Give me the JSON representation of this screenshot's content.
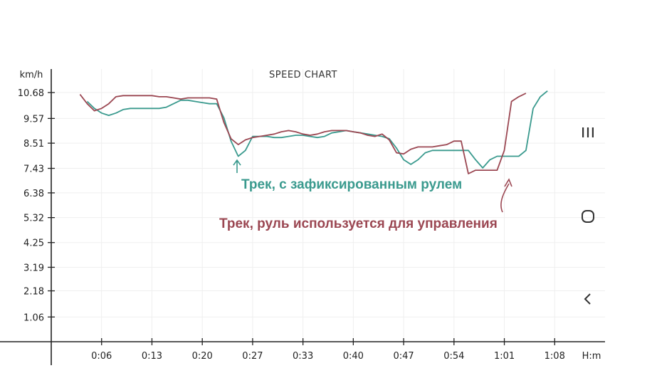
{
  "chart_data": {
    "type": "line",
    "title": "SPEED CHART",
    "ylabel": "km/h",
    "xlabel": "H:m",
    "ylim": [
      0,
      11
    ],
    "y_ticks": [
      "1.06",
      "2.18",
      "3.19",
      "4.25",
      "5.32",
      "6.38",
      "7.43",
      "8.51",
      "9.57",
      "10.68"
    ],
    "x_ticks": [
      {
        "label": "0:06",
        "t": 6
      },
      {
        "label": "0:13",
        "t": 13
      },
      {
        "label": "0:20",
        "t": 20
      },
      {
        "label": "0:27",
        "t": 27
      },
      {
        "label": "0:33",
        "t": 34
      },
      {
        "label": "0:40",
        "t": 41
      },
      {
        "label": "0:47",
        "t": 48
      },
      {
        "label": "0:54",
        "t": 55
      },
      {
        "label": "1:01",
        "t": 62
      },
      {
        "label": "1:08",
        "t": 69
      }
    ],
    "xlim": [
      -1,
      76
    ],
    "series": [
      {
        "name": "Трек, с зафиксированным рулем",
        "color": "#3a9a8e",
        "points": [
          [
            4,
            10.3
          ],
          [
            5,
            10.0
          ],
          [
            6,
            9.8
          ],
          [
            7,
            9.7
          ],
          [
            8,
            9.8
          ],
          [
            9,
            9.95
          ],
          [
            10,
            10.0
          ],
          [
            11,
            10.0
          ],
          [
            12,
            10.0
          ],
          [
            13,
            10.0
          ],
          [
            14,
            10.0
          ],
          [
            15,
            10.05
          ],
          [
            16,
            10.2
          ],
          [
            17,
            10.35
          ],
          [
            18,
            10.35
          ],
          [
            19,
            10.3
          ],
          [
            20,
            10.25
          ],
          [
            21,
            10.2
          ],
          [
            22,
            10.2
          ],
          [
            23,
            9.6
          ],
          [
            24,
            8.6
          ],
          [
            25,
            7.95
          ],
          [
            26,
            8.2
          ],
          [
            27,
            8.8
          ],
          [
            28,
            8.8
          ],
          [
            29,
            8.8
          ],
          [
            30,
            8.75
          ],
          [
            31,
            8.75
          ],
          [
            32,
            8.8
          ],
          [
            33,
            8.85
          ],
          [
            34,
            8.85
          ],
          [
            35,
            8.8
          ],
          [
            36,
            8.75
          ],
          [
            37,
            8.8
          ],
          [
            38,
            8.95
          ],
          [
            39,
            9.0
          ],
          [
            40,
            9.05
          ],
          [
            41,
            9.0
          ],
          [
            42,
            8.95
          ],
          [
            43,
            8.9
          ],
          [
            44,
            8.85
          ],
          [
            45,
            8.8
          ],
          [
            46,
            8.7
          ],
          [
            47,
            8.3
          ],
          [
            48,
            7.8
          ],
          [
            49,
            7.6
          ],
          [
            50,
            7.8
          ],
          [
            51,
            8.1
          ],
          [
            52,
            8.2
          ],
          [
            53,
            8.2
          ],
          [
            54,
            8.2
          ],
          [
            55,
            8.2
          ],
          [
            56,
            8.2
          ],
          [
            57,
            8.2
          ],
          [
            58,
            7.8
          ],
          [
            59,
            7.45
          ],
          [
            60,
            7.8
          ],
          [
            61,
            7.95
          ],
          [
            62,
            7.95
          ],
          [
            63,
            7.95
          ],
          [
            64,
            7.95
          ],
          [
            65,
            8.2
          ],
          [
            66,
            10.0
          ],
          [
            67,
            10.5
          ],
          [
            68,
            10.75
          ]
        ]
      },
      {
        "name": "Трек, руль используется для управления",
        "color": "#9b4752",
        "points": [
          [
            3,
            10.6
          ],
          [
            4,
            10.2
          ],
          [
            5,
            9.9
          ],
          [
            6,
            10.0
          ],
          [
            7,
            10.2
          ],
          [
            8,
            10.5
          ],
          [
            9,
            10.55
          ],
          [
            10,
            10.55
          ],
          [
            11,
            10.55
          ],
          [
            12,
            10.55
          ],
          [
            13,
            10.55
          ],
          [
            14,
            10.5
          ],
          [
            15,
            10.5
          ],
          [
            16,
            10.45
          ],
          [
            17,
            10.4
          ],
          [
            18,
            10.45
          ],
          [
            19,
            10.45
          ],
          [
            20,
            10.45
          ],
          [
            21,
            10.45
          ],
          [
            22,
            10.4
          ],
          [
            23,
            9.4
          ],
          [
            24,
            8.7
          ],
          [
            25,
            8.45
          ],
          [
            26,
            8.65
          ],
          [
            27,
            8.75
          ],
          [
            28,
            8.8
          ],
          [
            29,
            8.85
          ],
          [
            30,
            8.9
          ],
          [
            31,
            9.0
          ],
          [
            32,
            9.05
          ],
          [
            33,
            9.0
          ],
          [
            34,
            8.9
          ],
          [
            35,
            8.85
          ],
          [
            36,
            8.9
          ],
          [
            37,
            9.0
          ],
          [
            38,
            9.05
          ],
          [
            39,
            9.05
          ],
          [
            40,
            9.05
          ],
          [
            41,
            9.0
          ],
          [
            42,
            8.95
          ],
          [
            43,
            8.85
          ],
          [
            44,
            8.8
          ],
          [
            45,
            8.9
          ],
          [
            46,
            8.65
          ],
          [
            47,
            8.1
          ],
          [
            48,
            8.05
          ],
          [
            49,
            8.25
          ],
          [
            50,
            8.35
          ],
          [
            51,
            8.35
          ],
          [
            52,
            8.35
          ],
          [
            53,
            8.4
          ],
          [
            54,
            8.45
          ],
          [
            55,
            8.6
          ],
          [
            56,
            8.6
          ],
          [
            57,
            7.2
          ],
          [
            58,
            7.35
          ],
          [
            59,
            7.35
          ],
          [
            60,
            7.35
          ],
          [
            61,
            7.35
          ],
          [
            62,
            8.2
          ],
          [
            63,
            10.3
          ],
          [
            64,
            10.5
          ],
          [
            65,
            10.65
          ]
        ]
      }
    ],
    "annotations": {
      "teal_label": "Трек, с зафиксированным рулем",
      "red_label": "Трек, руль используется для управления"
    },
    "grid": true
  },
  "nav": {
    "recent_label": "recent-apps",
    "home_label": "home",
    "back_label": "back"
  }
}
